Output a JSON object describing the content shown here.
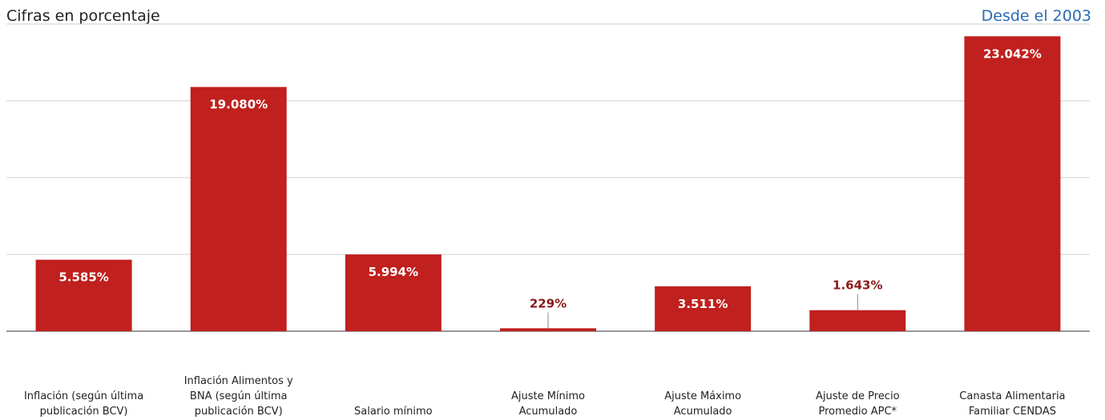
{
  "chart_data": {
    "type": "bar",
    "title": "Cifras en porcentaje",
    "subtitle": "Desde el 2003",
    "categories": [
      "Inflación (según última\npublicación BCV)",
      "Inflación Alimentos y\nBNA (según última\npublicación BCV)",
      "Salario mínimo",
      "Ajuste Mínimo\nAcumulado",
      "Ajuste Máximo\nAcumulado",
      "Ajuste de Precio\nPromedio APC*",
      "Canasta Alimentaria\nFamiliar CENDAS"
    ],
    "values": [
      5585,
      19080,
      5994,
      229,
      3511,
      1643,
      23042
    ],
    "value_labels": [
      "5.585%",
      "19.080%",
      "5.994%",
      "229%",
      "3.511%",
      "1.643%",
      "23.042%"
    ],
    "color": "#c0201e",
    "ylim": [
      0,
      24000
    ],
    "yticks": [
      0,
      6000,
      12000,
      18000,
      24000
    ],
    "grid": true
  }
}
